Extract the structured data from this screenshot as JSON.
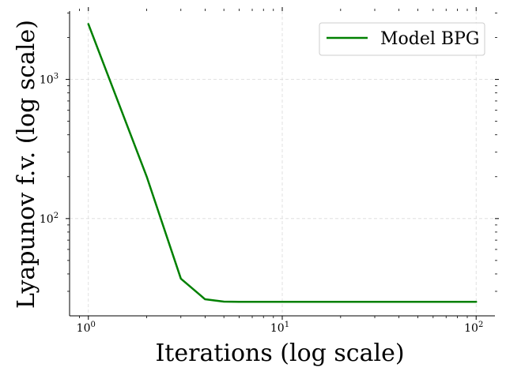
{
  "chart_data": {
    "type": "line",
    "xlabel": "Iterations (log scale)",
    "ylabel": "Lyapunov f.v. (log scale)",
    "xscale": "log",
    "yscale": "log",
    "xlim": [
      0.8,
      125
    ],
    "ylim": [
      20,
      3100
    ],
    "grid": true,
    "legend_position": "top-right",
    "x_major_ticks": [
      {
        "value": 1,
        "label": "10",
        "exp": "0"
      },
      {
        "value": 10,
        "label": "10",
        "exp": "1"
      },
      {
        "value": 100,
        "label": "10",
        "exp": "2"
      }
    ],
    "y_major_ticks": [
      {
        "value": 100,
        "label": "10",
        "exp": "2"
      },
      {
        "value": 1000,
        "label": "10",
        "exp": "3"
      }
    ],
    "series": [
      {
        "name": "Model BPG",
        "color": "#008000",
        "x": [
          1,
          2,
          3,
          4,
          5,
          6,
          7,
          8,
          10,
          15,
          20,
          30,
          50,
          70,
          100
        ],
        "y": [
          2500,
          200,
          37,
          26.3,
          25.3,
          25.2,
          25.2,
          25.2,
          25.2,
          25.2,
          25.2,
          25.2,
          25.2,
          25.2,
          25.2
        ]
      }
    ]
  }
}
